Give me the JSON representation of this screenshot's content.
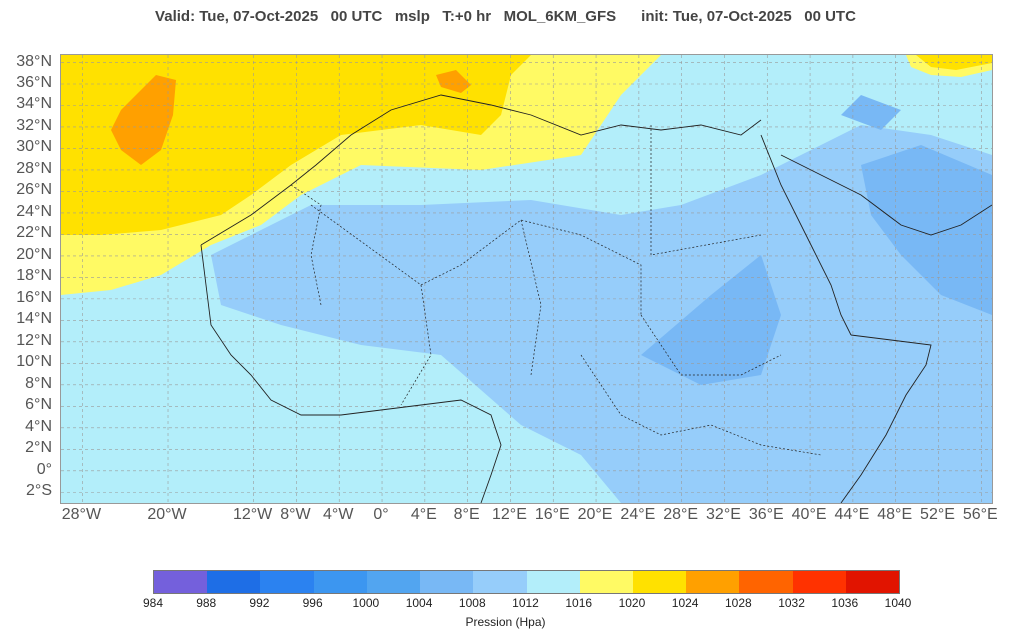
{
  "header": {
    "title": "Valid: Tue, 07-Oct-2025   00 UTC   mslp   T:+0 hr   MOL_6KM_GFS      init: Tue, 07-Oct-2025   00 UTC"
  },
  "map": {
    "lat_labels": [
      "38°N",
      "36°N",
      "34°N",
      "32°N",
      "30°N",
      "28°N",
      "26°N",
      "24°N",
      "22°N",
      "20°N",
      "18°N",
      "16°N",
      "14°N",
      "12°N",
      "10°N",
      "8°N",
      "6°N",
      "4°N",
      "2°N",
      "0°",
      "2°S"
    ],
    "lon_labels": [
      "28°W",
      "20°W",
      "12°W",
      "8°W",
      "4°W",
      "0°",
      "4°E",
      "8°E",
      "12°E",
      "16°E",
      "20°E",
      "24°E",
      "28°E",
      "32°E",
      "36°E",
      "40°E",
      "44°E",
      "48°E",
      "52°E",
      "56°E"
    ],
    "lat_values": [
      38,
      36,
      34,
      32,
      30,
      28,
      26,
      24,
      22,
      20,
      18,
      16,
      14,
      12,
      10,
      8,
      6,
      4,
      2,
      0,
      -2
    ],
    "lon_values": [
      -28,
      -20,
      -12,
      -8,
      -4,
      0,
      4,
      8,
      12,
      16,
      20,
      24,
      28,
      32,
      36,
      40,
      44,
      48,
      52,
      56
    ]
  },
  "legend": {
    "colors": [
      "#7460dc",
      "#1e6ee6",
      "#2b82f0",
      "#3c96f0",
      "#52a5f0",
      "#78b8f5",
      "#96cdfa",
      "#b3eefa",
      "#fffa64",
      "#ffe100",
      "#ffa000",
      "#ff6400",
      "#ff3200",
      "#e11400"
    ],
    "ticks": [
      "984",
      "988",
      "992",
      "996",
      "1000",
      "1004",
      "1008",
      "1012",
      "1016",
      "1020",
      "1024",
      "1028",
      "1032",
      "1036",
      "1040"
    ],
    "unit_label": "Pression (Hpa)"
  }
}
